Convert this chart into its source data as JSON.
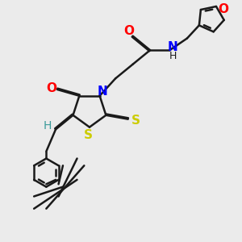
{
  "bg_color": "#ebebeb",
  "bond_color": "#1a1a1a",
  "bond_width": 1.8,
  "dbo": 0.012,
  "figsize": [
    3.0,
    3.0
  ],
  "dpi": 100,
  "xlim": [
    0,
    3.0
  ],
  "ylim": [
    0,
    3.0
  ]
}
